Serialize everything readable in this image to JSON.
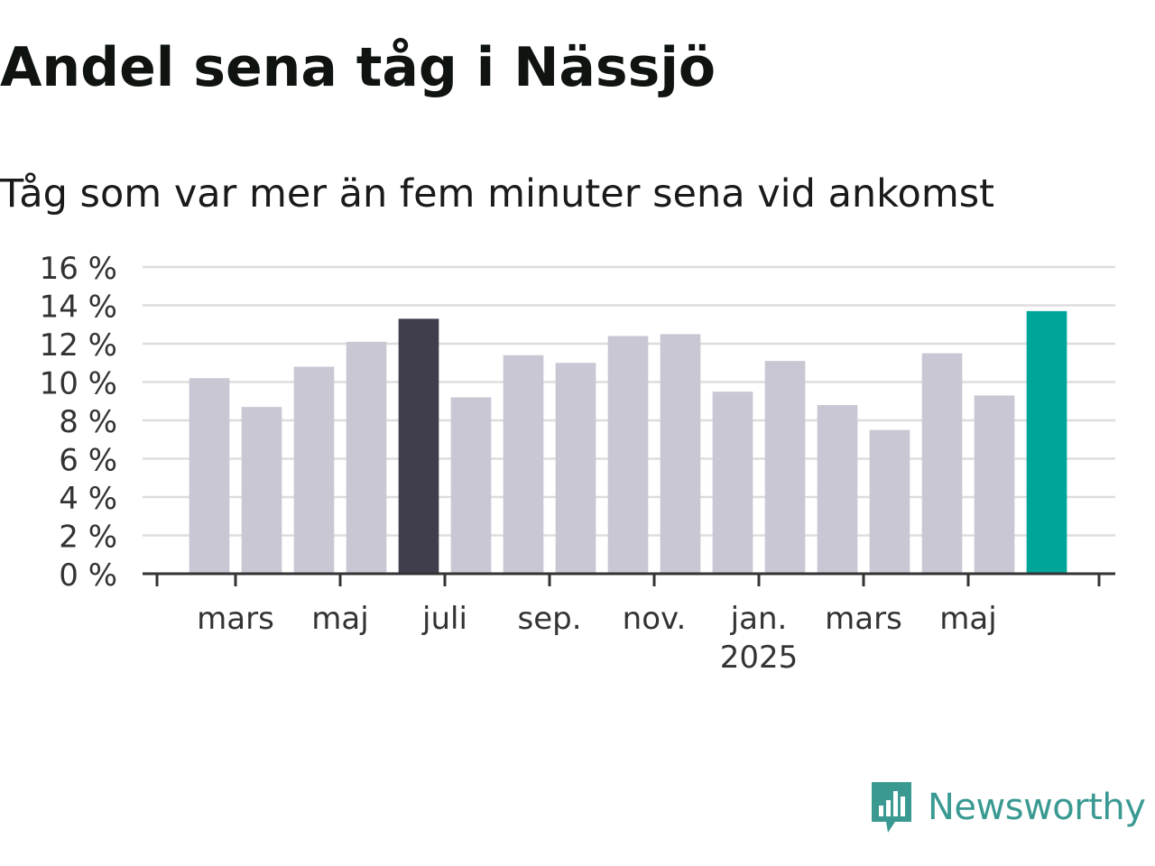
{
  "title": "Andel sena tåg i Nässjö",
  "subtitle": "Tåg som var mer än fem minuter sena vid ankomst",
  "brand": {
    "name": "Newsworthy",
    "icon": "newsworthy-logo-icon",
    "color": "#3a9a92"
  },
  "colors": {
    "default_bar": "#c9c7d3",
    "highlight_previous": "#403e4c",
    "highlight_latest": "#00a599",
    "grid": "#dddddd",
    "axis": "#333333"
  },
  "chart_data": {
    "type": "bar",
    "title": "Andel sena tåg i Nässjö",
    "subtitle": "Tåg som var mer än fem minuter sena vid ankomst",
    "xlabel": "",
    "ylabel": "",
    "ylim": [
      0,
      16
    ],
    "yticks": [
      "0 %",
      "2 %",
      "4 %",
      "6 %",
      "8 %",
      "10 %",
      "12 %",
      "14 %",
      "16 %"
    ],
    "grid": true,
    "x_tick_labels": [
      {
        "index": 2,
        "label": "mars"
      },
      {
        "index": 4,
        "label": "maj"
      },
      {
        "index": 6,
        "label": "juli"
      },
      {
        "index": 8,
        "label": "sep."
      },
      {
        "index": 10,
        "label": "nov."
      },
      {
        "index": 12,
        "label": "jan.",
        "sublabel": "2025"
      },
      {
        "index": 14,
        "label": "mars"
      },
      {
        "index": 16,
        "label": "maj"
      }
    ],
    "values": [
      10.2,
      8.7,
      10.8,
      12.1,
      13.3,
      9.2,
      11.4,
      11.0,
      12.4,
      12.5,
      9.5,
      11.1,
      8.8,
      7.5,
      11.5,
      9.3,
      13.7
    ],
    "bar_colors": [
      "default",
      "default",
      "default",
      "default",
      "highlight_previous",
      "default",
      "default",
      "default",
      "default",
      "default",
      "default",
      "default",
      "default",
      "default",
      "default",
      "default",
      "highlight_latest"
    ]
  }
}
